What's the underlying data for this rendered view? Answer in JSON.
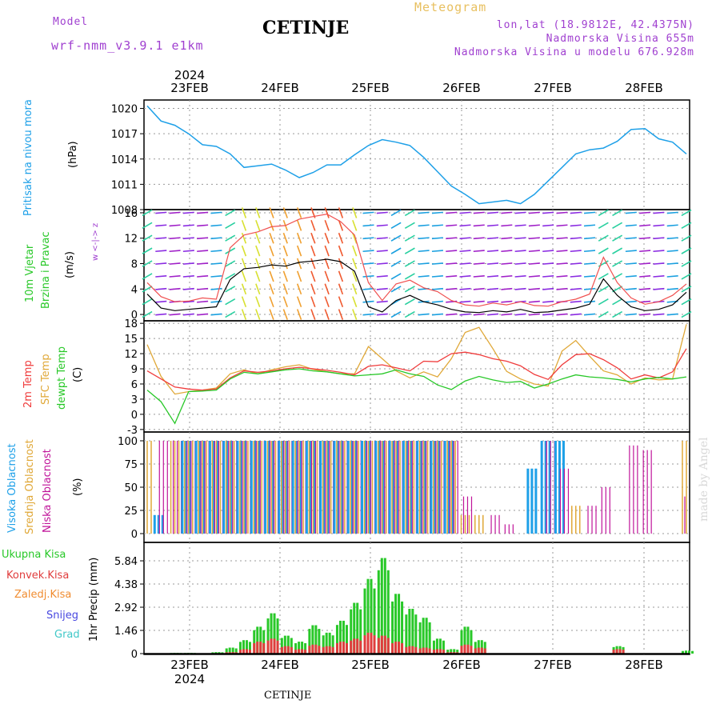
{
  "header": {
    "model_label": "Model",
    "model_name": "wrf-nmm_v3.9.1 e1km",
    "title": "CETINJE",
    "meteogram_label": "Meteogram",
    "lonlat": "lon,lat (18.9812E, 42.4375N)",
    "elevation": "Nadmorska Visina 655m",
    "model_elevation": "Nadmorska Visina u modelu 676.928m",
    "year": "2024",
    "credit": "made by Angel",
    "footer_station": "CETINJE"
  },
  "colors": {
    "pressure": "#1ea0e8",
    "temp2m": "#f03c3c",
    "sfc": "#e0a838",
    "dewpt": "#28c828",
    "high_cloud": "#1ea0e8",
    "mid_cloud": "#e0a838",
    "low_cloud": "#c0149a",
    "precip_total": "#28c828",
    "precip_conv": "#e03c3c",
    "wind_speed": "#000000",
    "gust": "#f05050",
    "meta": "#a040d0"
  },
  "x_axis": {
    "labels": [
      "23FEB",
      "24FEB",
      "25FEB",
      "26FEB",
      "27FEB",
      "28FEB"
    ],
    "year": "2024"
  },
  "panel_labels": {
    "pressure": [
      "Pritisak na nivou mora",
      "(hPa)"
    ],
    "wind": [
      "10m Vjetar",
      "Brzina i Pravac",
      "(m/s)"
    ],
    "compass": "w <-|-> z",
    "temp": [
      "2m Temp",
      "SFC Temp",
      "dewpt Temp",
      "(C)"
    ],
    "cloud": [
      "Visoka Oblacnost",
      "Srednja Oblacnost",
      "Niska Oblacnost",
      "(%)"
    ],
    "precip_legend": [
      "Ukupna Kisa",
      "Konvek.Kisa",
      "Zaledj.Kisa",
      "Snijeg",
      "Grad"
    ],
    "precip_axis": "1hr Precip (mm)"
  },
  "chart_data": [
    {
      "type": "line",
      "name": "Pritisak na nivou mora",
      "unit": "hPa",
      "x_start": "23FEB",
      "x_step_hours": 3,
      "yticks": [
        1008,
        1011,
        1014,
        1017,
        1020
      ],
      "ylim": [
        1008,
        1021
      ],
      "values": [
        1020.3,
        1018.5,
        1018.0,
        1017.0,
        1015.7,
        1015.5,
        1014.6,
        1013.0,
        1013.2,
        1013.4,
        1012.7,
        1011.8,
        1012.4,
        1013.3,
        1013.3,
        1014.5,
        1015.6,
        1016.3,
        1016.0,
        1015.6,
        1014.2,
        1012.5,
        1010.8,
        1009.8,
        1008.7,
        1008.9,
        1009.1,
        1008.7,
        1009.8,
        1011.4,
        1013.0,
        1014.6,
        1015.1,
        1015.3,
        1016.1,
        1017.5,
        1017.6,
        1016.4,
        1016.0,
        1014.6
      ]
    },
    {
      "type": "line",
      "name": "10m Vjetar",
      "unit": "m/s",
      "yticks": [
        0,
        4,
        8,
        12,
        16
      ],
      "ylim": [
        -1,
        16.5
      ],
      "speed": [
        3.2,
        1.0,
        0.6,
        0.8,
        1.0,
        1.2,
        5.5,
        7.2,
        7.4,
        7.8,
        7.6,
        8.2,
        8.4,
        8.7,
        8.3,
        6.8,
        1.2,
        0.4,
        2.2,
        3.0,
        2.0,
        1.5,
        0.8,
        0.4,
        0.3,
        0.6,
        0.4,
        0.8,
        0.3,
        0.4,
        0.7,
        1.0,
        1.6,
        5.6,
        3.0,
        1.2,
        0.6,
        0.8,
        1.5,
        3.5
      ],
      "gust": [
        5.0,
        2.8,
        2.0,
        2.1,
        2.6,
        2.4,
        10.5,
        12.5,
        13.0,
        13.8,
        14.0,
        15.0,
        15.4,
        15.8,
        14.6,
        12.5,
        5.0,
        2.2,
        4.8,
        5.4,
        4.2,
        3.6,
        2.2,
        1.5,
        1.3,
        1.8,
        1.5,
        2.0,
        1.4,
        1.3,
        2.0,
        2.4,
        3.2,
        9.0,
        5.0,
        2.6,
        1.6,
        2.0,
        3.0,
        4.8
      ]
    },
    {
      "type": "line",
      "name": "Temperatura",
      "unit": "C",
      "yticks": [
        -3,
        0,
        3,
        6,
        9,
        12,
        15,
        18
      ],
      "ylim": [
        -3.5,
        18.5
      ],
      "series": [
        {
          "name": "2m Temp",
          "values": [
            8.6,
            7.0,
            5.4,
            5.0,
            4.8,
            5.0,
            7.2,
            8.6,
            8.3,
            8.6,
            9.0,
            9.3,
            9.0,
            8.7,
            8.3,
            7.8,
            9.5,
            9.8,
            9.2,
            8.6,
            10.5,
            10.4,
            12.0,
            12.3,
            11.8,
            11.0,
            10.5,
            9.6,
            7.9,
            6.9,
            9.8,
            11.8,
            12.0,
            10.8,
            9.2,
            7.0,
            7.8,
            7.2,
            8.4,
            13.0
          ]
        },
        {
          "name": "SFC Temp",
          "values": [
            13.8,
            7.5,
            4.0,
            4.5,
            4.8,
            5.2,
            8.0,
            8.8,
            8.0,
            8.8,
            9.4,
            9.8,
            8.9,
            8.4,
            8.0,
            8.0,
            13.4,
            11.0,
            8.6,
            7.2,
            8.4,
            7.4,
            11.0,
            16.2,
            17.2,
            13.0,
            8.5,
            7.0,
            6.0,
            5.6,
            12.5,
            14.6,
            11.5,
            8.6,
            7.8,
            6.0,
            7.2,
            6.8,
            7.0,
            17.8
          ]
        },
        {
          "name": "dewpt Temp",
          "values": [
            4.8,
            2.5,
            -1.8,
            4.5,
            4.6,
            4.8,
            7.0,
            8.3,
            8.0,
            8.4,
            8.8,
            9.0,
            8.6,
            8.4,
            8.0,
            7.6,
            7.8,
            8.0,
            8.8,
            8.0,
            7.5,
            5.8,
            4.9,
            6.6,
            7.5,
            6.8,
            6.3,
            6.5,
            5.2,
            6.0,
            7.0,
            7.8,
            7.4,
            7.2,
            6.9,
            6.4,
            7.0,
            7.3,
            7.0,
            7.4
          ]
        }
      ]
    },
    {
      "type": "bar",
      "name": "Oblacnost",
      "unit": "%",
      "yticks": [
        0,
        25,
        50,
        75,
        100
      ],
      "ylim": [
        0,
        100
      ],
      "series": [
        {
          "name": "Visoka Oblacnost",
          "values": [
            0,
            20,
            0,
            100,
            100,
            100,
            100,
            100,
            100,
            100,
            100,
            100,
            100,
            100,
            100,
            100,
            100,
            100,
            100,
            100,
            100,
            100,
            100,
            0,
            0,
            0,
            0,
            0,
            70,
            100,
            100,
            0,
            0,
            0,
            0,
            0,
            0,
            0,
            0,
            0
          ]
        },
        {
          "name": "Srednja Oblacnost",
          "values": [
            100,
            0,
            100,
            100,
            100,
            100,
            100,
            100,
            100,
            100,
            100,
            100,
            100,
            100,
            100,
            100,
            100,
            100,
            100,
            100,
            100,
            100,
            100,
            20,
            20,
            0,
            0,
            0,
            0,
            0,
            0,
            30,
            0,
            0,
            0,
            0,
            0,
            0,
            0,
            100
          ]
        },
        {
          "name": "Niska Oblacnost",
          "values": [
            0,
            100,
            100,
            100,
            100,
            100,
            100,
            100,
            100,
            100,
            100,
            100,
            100,
            100,
            100,
            100,
            100,
            100,
            100,
            100,
            100,
            100,
            100,
            40,
            0,
            20,
            10,
            0,
            0,
            100,
            70,
            0,
            30,
            50,
            0,
            95,
            90,
            0,
            0,
            40
          ]
        }
      ]
    },
    {
      "type": "bar",
      "name": "1hr Precip",
      "unit": "mm",
      "yticks": [
        0,
        1.46,
        2.92,
        4.38,
        5.84
      ],
      "ylim": [
        0,
        7
      ],
      "series": [
        {
          "name": "Ukupna Kisa",
          "values": [
            0,
            0,
            0.05,
            0.05,
            0,
            0.1,
            0.4,
            0.9,
            1.8,
            2.7,
            1.2,
            0.8,
            1.9,
            1.4,
            2.2,
            3.4,
            5.0,
            6.4,
            4.0,
            3.0,
            2.4,
            1.0,
            0.3,
            1.8,
            0.9,
            0,
            0,
            0,
            0,
            0,
            0,
            0,
            0,
            0,
            0.5,
            0,
            0,
            0,
            0,
            0.2
          ]
        },
        {
          "name": "Konvek.Kisa",
          "values": [
            0,
            0,
            0,
            0,
            0,
            0,
            0.1,
            0.3,
            0.8,
            1.0,
            0.5,
            0.3,
            0.6,
            0.5,
            0.8,
            1.0,
            1.4,
            1.2,
            0.8,
            0.5,
            0.4,
            0.3,
            0.1,
            0.6,
            0.4,
            0,
            0,
            0,
            0,
            0,
            0,
            0,
            0,
            0,
            0.3,
            0,
            0,
            0,
            0,
            0
          ]
        },
        {
          "name": "Zaledj.Kisa",
          "values": [
            0,
            0,
            0,
            0,
            0,
            0,
            0,
            0,
            0,
            0,
            0,
            0,
            0,
            0,
            0,
            0,
            0,
            0,
            0,
            0,
            0,
            0,
            0,
            0,
            0,
            0,
            0,
            0,
            0,
            0,
            0,
            0,
            0,
            0,
            0,
            0,
            0,
            0,
            0,
            0
          ]
        },
        {
          "name": "Snijeg",
          "values": [
            0,
            0,
            0,
            0,
            0,
            0,
            0,
            0,
            0,
            0,
            0,
            0,
            0,
            0,
            0,
            0,
            0,
            0,
            0,
            0,
            0,
            0,
            0,
            0,
            0,
            0,
            0,
            0,
            0,
            0,
            0,
            0,
            0,
            0,
            0,
            0,
            0,
            0,
            0,
            0
          ]
        },
        {
          "name": "Grad",
          "values": [
            0,
            0,
            0,
            0,
            0,
            0,
            0,
            0,
            0,
            0,
            0,
            0,
            0,
            0,
            0,
            0,
            0,
            0,
            0,
            0,
            0,
            0,
            0,
            0,
            0,
            0,
            0,
            0,
            0,
            0,
            0,
            0,
            0,
            0,
            0,
            0,
            0,
            0,
            0,
            0
          ]
        }
      ]
    }
  ]
}
